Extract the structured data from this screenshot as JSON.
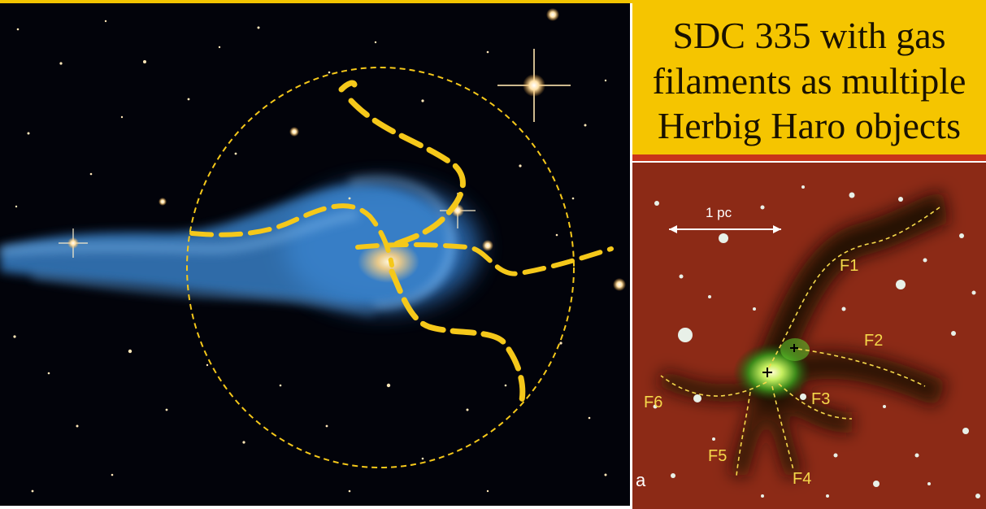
{
  "title": {
    "line1": "SDC 335 with gas",
    "line2": "filaments as multiple",
    "line3": "Herbig Haro objects"
  },
  "inset": {
    "scale_bar": "1 pc",
    "panel_letter": "a",
    "filaments": [
      {
        "label": "F1"
      },
      {
        "label": "F2"
      },
      {
        "label": "F3"
      },
      {
        "label": "F4"
      },
      {
        "label": "F5"
      },
      {
        "label": "F6"
      }
    ]
  },
  "colors": {
    "title_background": "#f5c500",
    "annotation_yellow": "#f5c81a",
    "nebula_blue": "#3a86d0",
    "inset_red": "#8a2414",
    "inset_green": "#5fbf2a"
  }
}
